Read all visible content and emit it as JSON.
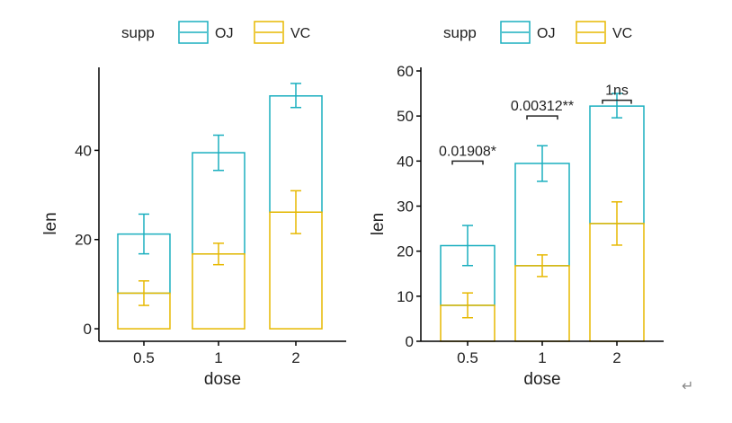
{
  "chart_data": [
    {
      "type": "bar",
      "subtype": "stacked",
      "xlabel": "dose",
      "ylabel": "len",
      "categories": [
        "0.5",
        "1",
        "2"
      ],
      "ylim": [
        -2,
        58
      ],
      "yticks": [
        0,
        20,
        40
      ],
      "legend": {
        "title": "supp",
        "position": "top",
        "entries": [
          "OJ",
          "VC"
        ]
      },
      "series": [
        {
          "name": "VC",
          "values": [
            7.98,
            16.77,
            26.14
          ],
          "error_low": [
            5.23,
            14.37,
            21.34
          ],
          "error_high": [
            10.73,
            19.17,
            30.94
          ]
        },
        {
          "name": "OJ",
          "values": [
            13.25,
            22.7,
            26.06
          ],
          "error_low": [
            16.8,
            35.5,
            49.6
          ],
          "error_high": [
            25.7,
            43.4,
            55.0
          ]
        }
      ],
      "totals": [
        21.23,
        39.47,
        52.2
      ]
    },
    {
      "type": "bar",
      "subtype": "stacked",
      "xlabel": "dose",
      "ylabel": "len",
      "categories": [
        "0.5",
        "1",
        "2"
      ],
      "ylim": [
        0,
        60
      ],
      "yticks": [
        0,
        10,
        20,
        30,
        40,
        50,
        60
      ],
      "legend": {
        "title": "supp",
        "position": "top",
        "entries": [
          "OJ",
          "VC"
        ]
      },
      "series": [
        {
          "name": "VC",
          "values": [
            7.98,
            16.77,
            26.14
          ],
          "error_low": [
            5.23,
            14.37,
            21.34
          ],
          "error_high": [
            10.73,
            19.17,
            30.94
          ]
        },
        {
          "name": "OJ",
          "values": [
            13.25,
            22.7,
            26.06
          ],
          "error_low": [
            16.8,
            35.5,
            49.6
          ],
          "error_high": [
            25.7,
            43.4,
            55.0
          ]
        }
      ],
      "totals": [
        21.23,
        39.47,
        52.2
      ],
      "annotations": [
        {
          "category": "0.5",
          "label": "0.01908*",
          "y": 40
        },
        {
          "category": "1",
          "label": "0.00312**",
          "y": 50
        },
        {
          "category": "2",
          "label": "1ns",
          "y": 53.5
        }
      ]
    }
  ],
  "colors": {
    "OJ": "#1AAFBF",
    "VC": "#E7B800",
    "axis": "#000000"
  },
  "return_symbol": "↵"
}
